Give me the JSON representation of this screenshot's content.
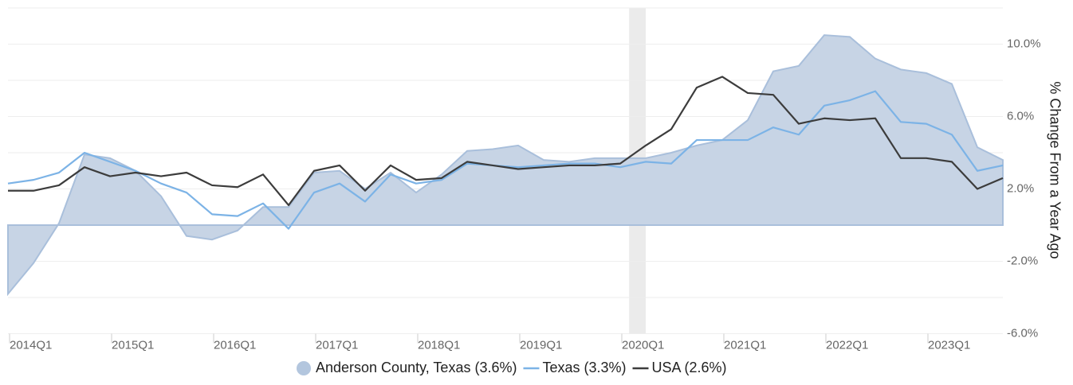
{
  "chart_data": {
    "type": "line",
    "y_axis_label": "% Change From a Year Ago",
    "categories": [
      "2014Q1",
      null,
      null,
      null,
      "2015Q1",
      null,
      null,
      null,
      "2016Q1",
      null,
      null,
      null,
      "2017Q1",
      null,
      null,
      null,
      "2018Q1",
      null,
      null,
      null,
      "2019Q1",
      null,
      null,
      null,
      "2020Q1",
      null,
      null,
      null,
      "2021Q1",
      null,
      null,
      null,
      "2022Q1",
      null,
      null,
      null,
      "2023Q1",
      null,
      null,
      null
    ],
    "series": [
      {
        "name": "Anderson County, Texas (3.6%)",
        "kind": "area",
        "color": "#a9bfdb",
        "values": [
          -3.8,
          -2.1,
          0.1,
          3.9,
          3.7,
          3.0,
          1.6,
          -0.6,
          -0.8,
          -0.3,
          1.0,
          1.0,
          2.9,
          3.0,
          2.0,
          2.9,
          1.8,
          2.8,
          4.1,
          4.2,
          4.4,
          3.6,
          3.5,
          3.7,
          3.7,
          3.7,
          4.0,
          4.4,
          4.7,
          5.8,
          8.5,
          8.8,
          10.5,
          10.4,
          9.2,
          8.6,
          8.4,
          7.8,
          4.3,
          3.6
        ]
      },
      {
        "name": "Texas (3.3%)",
        "kind": "line",
        "color": "#7cb3e6",
        "values": [
          2.3,
          2.5,
          2.9,
          4.0,
          3.5,
          3.0,
          2.3,
          1.8,
          0.6,
          0.5,
          1.2,
          -0.2,
          1.8,
          2.3,
          1.3,
          2.8,
          2.3,
          2.5,
          3.4,
          3.3,
          3.2,
          3.3,
          3.4,
          3.4,
          3.2,
          3.5,
          3.4,
          4.7,
          4.7,
          4.7,
          5.4,
          5.0,
          6.6,
          6.9,
          7.4,
          5.7,
          5.6,
          5.0,
          3.0,
          3.3
        ]
      },
      {
        "name": "USA (2.6%)",
        "kind": "line",
        "color": "#3c3c3c",
        "values": [
          1.9,
          1.9,
          2.2,
          3.2,
          2.7,
          2.9,
          2.7,
          2.9,
          2.2,
          2.1,
          2.8,
          1.1,
          3.0,
          3.3,
          1.9,
          3.3,
          2.5,
          2.6,
          3.5,
          3.3,
          3.1,
          3.2,
          3.3,
          3.3,
          3.4,
          4.4,
          5.3,
          7.6,
          8.2,
          7.3,
          7.2,
          5.6,
          5.9,
          5.8,
          5.9,
          3.7,
          3.7,
          3.5,
          2.0,
          2.6
        ]
      }
    ],
    "ylim": [
      -6,
      12
    ],
    "yticks": [
      {
        "value": 10,
        "label": "10.0%"
      },
      {
        "value": 6,
        "label": "6.0%"
      },
      {
        "value": 2,
        "label": "2.0%"
      },
      {
        "value": -2,
        "label": "-2.0%"
      },
      {
        "value": -6,
        "label": "-6.0%"
      }
    ],
    "minor_yticks": [
      12,
      8,
      4,
      0,
      -4
    ],
    "grid": true,
    "legend": "bottom"
  }
}
